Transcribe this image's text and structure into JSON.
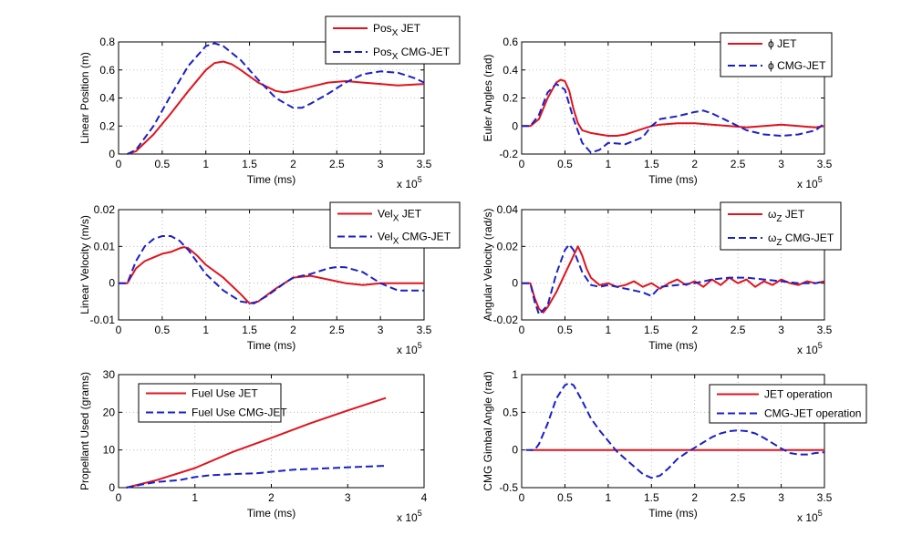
{
  "colors": {
    "jet": "#e0141e",
    "cmg": "#1a20c8",
    "axis": "#000000",
    "grid": "#b0b0b0"
  },
  "chart_data": [
    {
      "type": "line",
      "xlabel": "Time (ms)",
      "ylabel": "Linear Position (m)",
      "xlim": [
        0,
        3.5
      ],
      "ylim": [
        0,
        0.8
      ],
      "xticks": [
        0,
        0.5,
        1,
        1.5,
        2,
        2.5,
        3,
        3.5
      ],
      "xtick_labels": [
        "0",
        "0.5",
        "1",
        "1.5",
        "2",
        "2.5",
        "3",
        "3.5"
      ],
      "yticks": [
        0,
        0.2,
        0.4,
        0.6,
        0.8
      ],
      "ytick_labels": [
        "0",
        "0.2",
        "0.4",
        "0.6",
        "0.8"
      ],
      "x_multiplier": {
        "base": "x 10",
        "exp": "5"
      },
      "grid": true,
      "legend_position": "top-right",
      "series": [
        {
          "name": "Pos",
          "sub": "X",
          "suffix": " JET",
          "color": "#e0141e",
          "dash": "solid",
          "x": [
            0.1,
            0.2,
            0.4,
            0.6,
            0.8,
            1.0,
            1.1,
            1.2,
            1.3,
            1.4,
            1.6,
            1.8,
            1.9,
            2.0,
            2.2,
            2.4,
            2.6,
            2.8,
            3.0,
            3.2,
            3.5
          ],
          "y": [
            0,
            0.02,
            0.14,
            0.29,
            0.45,
            0.6,
            0.65,
            0.66,
            0.64,
            0.6,
            0.51,
            0.45,
            0.44,
            0.45,
            0.48,
            0.51,
            0.52,
            0.51,
            0.5,
            0.49,
            0.5
          ]
        },
        {
          "name": "Pos",
          "sub": "X",
          "suffix": " CMG-JET",
          "color": "#1a20c8",
          "dash": "dashed",
          "x": [
            0.1,
            0.2,
            0.4,
            0.6,
            0.8,
            1.0,
            1.1,
            1.2,
            1.4,
            1.6,
            1.8,
            2.0,
            2.1,
            2.2,
            2.4,
            2.6,
            2.8,
            3.0,
            3.2,
            3.4,
            3.5
          ],
          "y": [
            0,
            0.03,
            0.2,
            0.42,
            0.63,
            0.77,
            0.79,
            0.77,
            0.67,
            0.53,
            0.4,
            0.33,
            0.33,
            0.36,
            0.43,
            0.51,
            0.57,
            0.59,
            0.58,
            0.54,
            0.51
          ]
        }
      ]
    },
    {
      "type": "line",
      "xlabel": "Time (ms)",
      "ylabel": "Euler Angles (rad)",
      "xlim": [
        0,
        3.5
      ],
      "ylim": [
        -0.2,
        0.6
      ],
      "xticks": [
        0,
        0.5,
        1,
        1.5,
        2,
        2.5,
        3,
        3.5
      ],
      "xtick_labels": [
        "0",
        "0.5",
        "1",
        "1.5",
        "2",
        "2.5",
        "3",
        "3.5"
      ],
      "yticks": [
        -0.2,
        0,
        0.2,
        0.4,
        0.6
      ],
      "ytick_labels": [
        "-0.2",
        "0",
        "0.2",
        "0.4",
        "0.6"
      ],
      "x_multiplier": {
        "base": "x 10",
        "exp": "5"
      },
      "grid": true,
      "legend_position": "top-right",
      "series": [
        {
          "name": "ϕ",
          "sub": "",
          "suffix": " JET",
          "color": "#e0141e",
          "dash": "solid",
          "x": [
            0,
            0.1,
            0.2,
            0.3,
            0.4,
            0.45,
            0.5,
            0.55,
            0.6,
            0.65,
            0.7,
            0.8,
            0.9,
            1.0,
            1.1,
            1.2,
            1.3,
            1.4,
            1.5,
            1.6,
            1.8,
            2.0,
            2.2,
            2.4,
            2.6,
            2.8,
            3.0,
            3.2,
            3.4,
            3.5
          ],
          "y": [
            0,
            0,
            0.05,
            0.2,
            0.31,
            0.33,
            0.32,
            0.25,
            0.12,
            0.02,
            -0.03,
            -0.05,
            -0.06,
            -0.07,
            -0.07,
            -0.06,
            -0.04,
            -0.02,
            0.0,
            0.01,
            0.02,
            0.02,
            0.01,
            0.0,
            -0.01,
            0.0,
            0.01,
            0.0,
            -0.01,
            0.0
          ]
        },
        {
          "name": "ϕ",
          "sub": "",
          "suffix": " CMG-JET",
          "color": "#1a20c8",
          "dash": "dashed",
          "x": [
            0,
            0.1,
            0.2,
            0.3,
            0.4,
            0.5,
            0.6,
            0.7,
            0.8,
            0.9,
            1.0,
            1.2,
            1.4,
            1.5,
            1.6,
            1.8,
            2.0,
            2.1,
            2.2,
            2.4,
            2.6,
            2.8,
            3.0,
            3.2,
            3.4,
            3.5
          ],
          "y": [
            0,
            0,
            0.08,
            0.24,
            0.3,
            0.26,
            0.05,
            -0.12,
            -0.19,
            -0.17,
            -0.12,
            -0.13,
            -0.08,
            0.0,
            0.05,
            0.07,
            0.1,
            0.11,
            0.09,
            0.03,
            -0.03,
            -0.06,
            -0.07,
            -0.06,
            -0.03,
            0.02
          ]
        }
      ]
    },
    {
      "type": "line",
      "xlabel": "Time (ms)",
      "ylabel": "Linear Velocity (m/s)",
      "xlim": [
        0,
        3.5
      ],
      "ylim": [
        -0.01,
        0.02
      ],
      "xticks": [
        0,
        0.5,
        1,
        1.5,
        2,
        2.5,
        3,
        3.5
      ],
      "xtick_labels": [
        "0",
        "0.5",
        "1",
        "1.5",
        "2",
        "2.5",
        "3",
        "3.5"
      ],
      "yticks": [
        -0.01,
        0,
        0.01,
        0.02
      ],
      "ytick_labels": [
        "-0.01",
        "0",
        "0.01",
        "0.02"
      ],
      "x_multiplier": {
        "base": "x 10",
        "exp": "5"
      },
      "grid": true,
      "legend_position": "top-right",
      "series": [
        {
          "name": "Vel",
          "sub": "X",
          "suffix": " JET",
          "color": "#e0141e",
          "dash": "solid",
          "x": [
            0,
            0.1,
            0.2,
            0.3,
            0.4,
            0.5,
            0.6,
            0.7,
            0.75,
            0.8,
            0.9,
            1.0,
            1.2,
            1.4,
            1.5,
            1.6,
            1.8,
            2.0,
            2.2,
            2.4,
            2.6,
            2.8,
            3.0,
            3.2,
            3.5
          ],
          "y": [
            0,
            0,
            0.004,
            0.006,
            0.007,
            0.008,
            0.0085,
            0.0095,
            0.0098,
            0.0095,
            0.0075,
            0.005,
            0.0015,
            -0.003,
            -0.0055,
            -0.005,
            -0.0015,
            0.0015,
            0.002,
            0.001,
            0.0,
            -0.0005,
            0.0,
            0.0,
            0.0
          ]
        },
        {
          "name": "Vel",
          "sub": "X",
          "suffix": " CMG-JET",
          "color": "#1a20c8",
          "dash": "dashed",
          "x": [
            0,
            0.1,
            0.2,
            0.3,
            0.4,
            0.5,
            0.6,
            0.7,
            0.8,
            1.0,
            1.2,
            1.4,
            1.55,
            1.7,
            1.9,
            2.0,
            2.2,
            2.4,
            2.5,
            2.6,
            2.8,
            3.0,
            3.2,
            3.5
          ],
          "y": [
            0,
            0,
            0.006,
            0.01,
            0.012,
            0.0128,
            0.0128,
            0.0115,
            0.009,
            0.0025,
            -0.002,
            -0.005,
            -0.0055,
            -0.0035,
            0.0,
            0.0015,
            0.0025,
            0.004,
            0.0044,
            0.0043,
            0.003,
            0.0,
            -0.002,
            -0.002
          ]
        }
      ]
    },
    {
      "type": "line",
      "xlabel": "Time (ms)",
      "ylabel": "Angular Velocity (rad/s)",
      "xlim": [
        0,
        3.5
      ],
      "ylim": [
        -0.02,
        0.04
      ],
      "xticks": [
        0,
        0.5,
        1,
        1.5,
        2,
        2.5,
        3,
        3.5
      ],
      "xtick_labels": [
        "0",
        "0.5",
        "1",
        "1.5",
        "2",
        "2.5",
        "3",
        "3.5"
      ],
      "yticks": [
        -0.02,
        0,
        0.02,
        0.04
      ],
      "ytick_labels": [
        "-0.02",
        "0",
        "0.02",
        "0.04"
      ],
      "x_multiplier": {
        "base": "x 10",
        "exp": "5"
      },
      "grid": true,
      "legend_position": "top-right",
      "series": [
        {
          "name": "ω",
          "sub": "Z",
          "suffix": " JET",
          "color": "#e0141e",
          "dash": "solid",
          "x": [
            0,
            0.1,
            0.15,
            0.2,
            0.25,
            0.3,
            0.4,
            0.5,
            0.6,
            0.65,
            0.7,
            0.75,
            0.8,
            0.9,
            1.0,
            1.1,
            1.2,
            1.3,
            1.4,
            1.5,
            1.6,
            1.7,
            1.8,
            1.9,
            2.0,
            2.1,
            2.2,
            2.3,
            2.4,
            2.5,
            2.6,
            2.7,
            2.8,
            2.9,
            3.0,
            3.1,
            3.2,
            3.3,
            3.4,
            3.5
          ],
          "y": [
            0,
            0,
            -0.008,
            -0.014,
            -0.016,
            -0.013,
            -0.005,
            0.005,
            0.015,
            0.02,
            0.015,
            0.008,
            0.003,
            -0.001,
            0.0,
            -0.002,
            -0.001,
            0.001,
            -0.002,
            0.0,
            -0.003,
            0.0,
            0.002,
            -0.001,
            0.001,
            -0.002,
            0.002,
            -0.001,
            0.003,
            0.0,
            0.002,
            -0.002,
            0.001,
            -0.001,
            0.002,
            0.0,
            -0.001,
            0.001,
            0.0,
            0.001
          ]
        },
        {
          "name": "ω",
          "sub": "Z",
          "suffix": " CMG-JET",
          "color": "#1a20c8",
          "dash": "dashed",
          "x": [
            0,
            0.1,
            0.15,
            0.2,
            0.3,
            0.4,
            0.5,
            0.55,
            0.6,
            0.7,
            0.8,
            0.9,
            1.0,
            1.1,
            1.2,
            1.3,
            1.4,
            1.5,
            1.6,
            1.8,
            2.0,
            2.2,
            2.4,
            2.6,
            2.8,
            3.0,
            3.2,
            3.4,
            3.5
          ],
          "y": [
            0,
            0,
            -0.01,
            -0.017,
            -0.012,
            0.005,
            0.018,
            0.021,
            0.018,
            0.006,
            -0.001,
            -0.002,
            -0.001,
            -0.002,
            -0.003,
            -0.004,
            -0.005,
            -0.007,
            -0.002,
            -0.001,
            0.0,
            0.002,
            0.003,
            0.003,
            0.002,
            0.001,
            0.0,
            0.0,
            0.001
          ]
        }
      ]
    },
    {
      "type": "line",
      "xlabel": "Time (ms)",
      "ylabel": "Propellant Used (grams)",
      "xlim": [
        0,
        4
      ],
      "ylim": [
        0,
        30
      ],
      "xticks": [
        0,
        1,
        2,
        3,
        4
      ],
      "xtick_labels": [
        "0",
        "1",
        "2",
        "3",
        "4"
      ],
      "yticks": [
        0,
        10,
        20,
        30
      ],
      "ytick_labels": [
        "0",
        "10",
        "20",
        "30"
      ],
      "x_multiplier": {
        "base": "x 10",
        "exp": "5"
      },
      "grid": true,
      "legend_position": "top-left",
      "series": [
        {
          "name": "Fuel Use JET",
          "sub": "",
          "suffix": "",
          "color": "#e0141e",
          "dash": "solid",
          "x": [
            0.1,
            0.5,
            1.0,
            1.5,
            2.0,
            2.5,
            3.0,
            3.5
          ],
          "y": [
            0,
            2,
            5.2,
            9.5,
            13.2,
            17.0,
            20.5,
            23.8
          ]
        },
        {
          "name": "Fuel Use CMG-JET",
          "sub": "",
          "suffix": "",
          "color": "#1a20c8",
          "dash": "dashed",
          "x": [
            0.1,
            0.3,
            0.5,
            0.8,
            1.0,
            1.2,
            1.5,
            1.8,
            2.0,
            2.3,
            2.6,
            3.0,
            3.5
          ],
          "y": [
            0,
            0.8,
            1.5,
            2.0,
            2.8,
            3.3,
            3.6,
            3.8,
            4.2,
            4.8,
            5.0,
            5.4,
            5.8
          ]
        }
      ]
    },
    {
      "type": "line",
      "xlabel": "Time (ms)",
      "ylabel": "CMG Gimbal Angle (rad)",
      "xlim": [
        0,
        3.5
      ],
      "ylim": [
        -0.5,
        1
      ],
      "xticks": [
        0,
        0.5,
        1,
        1.5,
        2,
        2.5,
        3,
        3.5
      ],
      "xtick_labels": [
        "0",
        "0.5",
        "1",
        "1.5",
        "2",
        "2.5",
        "3",
        "3.5"
      ],
      "yticks": [
        -0.5,
        0,
        0.5,
        1
      ],
      "ytick_labels": [
        "-0.5",
        "0",
        "0.5",
        "1"
      ],
      "x_multiplier": {
        "base": "x 10",
        "exp": "5"
      },
      "grid": true,
      "legend_position": "top-right",
      "series": [
        {
          "name": "JET operation",
          "sub": "",
          "suffix": "",
          "color": "#e0141e",
          "dash": "solid",
          "x": [
            0.1,
            3.5
          ],
          "y": [
            0,
            0
          ]
        },
        {
          "name": "CMG-JET operation",
          "sub": "",
          "suffix": "",
          "color": "#1a20c8",
          "dash": "dashed",
          "x": [
            0.05,
            0.15,
            0.2,
            0.3,
            0.4,
            0.5,
            0.55,
            0.6,
            0.7,
            0.8,
            0.9,
            1.0,
            1.1,
            1.2,
            1.3,
            1.4,
            1.5,
            1.6,
            1.7,
            1.8,
            1.9,
            2.0,
            2.1,
            2.2,
            2.3,
            2.4,
            2.5,
            2.6,
            2.7,
            2.8,
            2.9,
            3.0,
            3.1,
            3.2,
            3.3,
            3.4,
            3.5
          ],
          "y": [
            0,
            0,
            0.08,
            0.35,
            0.68,
            0.86,
            0.89,
            0.86,
            0.65,
            0.42,
            0.26,
            0.12,
            -0.02,
            -0.12,
            -0.22,
            -0.32,
            -0.37,
            -0.34,
            -0.24,
            -0.12,
            -0.04,
            0.03,
            0.1,
            0.17,
            0.22,
            0.25,
            0.26,
            0.25,
            0.22,
            0.16,
            0.09,
            0.02,
            -0.04,
            -0.06,
            -0.06,
            -0.04,
            -0.03
          ]
        }
      ]
    }
  ]
}
